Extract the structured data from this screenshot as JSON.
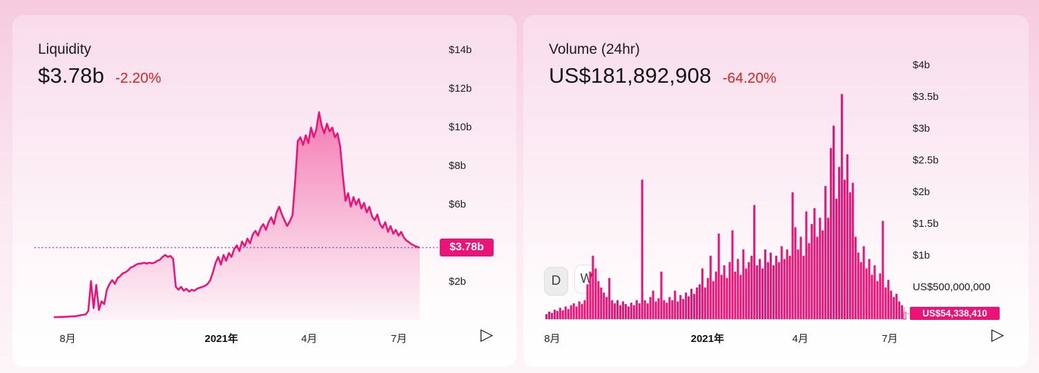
{
  "colors": {
    "accent_pink": "#ec1277",
    "badge_pink": "#ec1277",
    "negative_red": "#e0231c",
    "dotted_line_purple": "#7b2d8e",
    "connector_pink": "#f2a9ce"
  },
  "icons": {
    "play": "▷"
  },
  "liquidity_card": {
    "title": "Liquidity",
    "value": "$3.78b",
    "change": "-2.20%"
  },
  "volume_card": {
    "title": "Volume (24hr)",
    "value": "US$181,892,908",
    "change": "-64.20%",
    "range_buttons": [
      {
        "label": "D",
        "active": true
      },
      {
        "label": "W",
        "active": false
      }
    ]
  },
  "chart_data": [
    {
      "type": "area",
      "title": "Liquidity",
      "unit": "USD billions",
      "ylim": [
        0,
        14.8
      ],
      "grid": false,
      "yticks": [
        {
          "label": "$14b",
          "value": 14
        },
        {
          "label": "$12b",
          "value": 12
        },
        {
          "label": "$10b",
          "value": 10
        },
        {
          "label": "$8b",
          "value": 8
        },
        {
          "label": "$6b",
          "value": 6
        },
        {
          "label": "$2b",
          "value": 2
        }
      ],
      "xticks": [
        {
          "label": "8月",
          "pos": 0.038,
          "bold": false
        },
        {
          "label": "2021年",
          "pos": 0.458,
          "bold": true
        },
        {
          "label": "4月",
          "pos": 0.698,
          "bold": false
        },
        {
          "label": "7月",
          "pos": 0.943,
          "bold": false
        }
      ],
      "current": {
        "label": "$3.78b",
        "value": 3.78
      },
      "values": [
        0.18,
        0.18,
        0.19,
        0.19,
        0.2,
        0.2,
        0.21,
        0.22,
        0.22,
        0.25,
        0.28,
        0.3,
        0.32,
        0.5,
        2.05,
        0.65,
        1.85,
        0.55,
        1.0,
        0.85,
        1.6,
        1.9,
        2.1,
        1.9,
        2.2,
        2.3,
        2.45,
        2.5,
        2.6,
        2.75,
        2.8,
        2.9,
        2.95,
        2.95,
        3.0,
        2.95,
        3.0,
        2.97,
        3.0,
        3.1,
        3.15,
        3.3,
        3.4,
        3.3,
        3.35,
        3.2,
        1.75,
        1.6,
        1.75,
        1.55,
        1.65,
        1.5,
        1.6,
        1.55,
        1.65,
        1.7,
        1.75,
        1.8,
        1.9,
        2.1,
        2.5,
        3.0,
        3.3,
        2.9,
        3.4,
        3.1,
        3.5,
        3.3,
        3.7,
        3.9,
        3.6,
        4.1,
        3.85,
        4.25,
        4.0,
        4.45,
        4.65,
        4.4,
        4.8,
        5.0,
        4.7,
        5.1,
        5.35,
        5.0,
        5.6,
        5.9,
        5.5,
        5.2,
        4.9,
        5.15,
        5.45,
        7.2,
        9.3,
        9.5,
        9.1,
        9.6,
        9.2,
        10.0,
        9.5,
        9.9,
        10.8,
        10.1,
        9.7,
        10.2,
        9.8,
        10.0,
        9.5,
        9.7,
        9.0,
        7.5,
        6.2,
        6.6,
        5.9,
        6.4,
        6.0,
        6.3,
        5.8,
        6.1,
        5.6,
        5.9,
        5.4,
        5.2,
        5.5,
        5.0,
        4.8,
        5.1,
        4.6,
        4.9,
        4.5,
        4.7,
        4.4,
        4.6,
        4.3,
        4.15,
        4.05,
        3.95,
        3.88,
        3.82,
        3.78
      ]
    },
    {
      "type": "bar",
      "title": "Volume (24hr)",
      "unit": "USD billions",
      "ylim": [
        0,
        4.3
      ],
      "grid": false,
      "yticks": [
        {
          "label": "$4b",
          "value": 4
        },
        {
          "label": "$3.5b",
          "value": 3.5
        },
        {
          "label": "$3b",
          "value": 3
        },
        {
          "label": "$2.5b",
          "value": 2.5
        },
        {
          "label": "$2b",
          "value": 2
        },
        {
          "label": "$1.5b",
          "value": 1.5
        },
        {
          "label": "$1b",
          "value": 1
        },
        {
          "label": "US$500,000,000",
          "value": 0.5
        }
      ],
      "xticks": [
        {
          "label": "8月",
          "pos": 0.019,
          "bold": false
        },
        {
          "label": "2021年",
          "pos": 0.449,
          "bold": true
        },
        {
          "label": "4月",
          "pos": 0.706,
          "bold": false
        },
        {
          "label": "7月",
          "pos": 0.954,
          "bold": false
        }
      ],
      "current": {
        "label": "US$54,338,410",
        "value": 0.054
      },
      "last_bar_outlined": true,
      "values": [
        0.08,
        0.12,
        0.1,
        0.15,
        0.13,
        0.18,
        0.14,
        0.2,
        0.16,
        0.22,
        0.25,
        0.2,
        0.28,
        0.24,
        0.3,
        0.55,
        0.75,
        1.0,
        0.8,
        0.6,
        0.5,
        0.42,
        0.35,
        0.65,
        0.3,
        0.25,
        0.3,
        0.22,
        0.28,
        0.24,
        0.2,
        0.26,
        0.22,
        0.3,
        0.25,
        2.2,
        0.3,
        0.25,
        0.35,
        0.45,
        0.28,
        0.33,
        0.75,
        0.3,
        0.26,
        0.35,
        0.3,
        0.45,
        0.28,
        0.38,
        0.32,
        0.42,
        0.36,
        0.48,
        0.4,
        0.5,
        0.55,
        0.8,
        0.5,
        0.65,
        1.0,
        0.6,
        0.75,
        1.35,
        0.7,
        0.85,
        0.65,
        0.9,
        1.4,
        0.75,
        0.95,
        0.7,
        1.1,
        0.8,
        0.9,
        1.0,
        1.8,
        0.85,
        0.95,
        0.8,
        1.1,
        0.9,
        1.05,
        0.85,
        1.0,
        0.9,
        1.15,
        0.95,
        1.1,
        1.0,
        2.0,
        1.45,
        1.1,
        1.3,
        1.0,
        1.7,
        1.2,
        1.5,
        1.75,
        1.3,
        1.6,
        1.4,
        2.1,
        1.6,
        2.7,
        3.05,
        1.9,
        2.4,
        3.55,
        2.2,
        2.6,
        2.0,
        2.15,
        1.3,
        1.05,
        0.9,
        1.15,
        0.8,
        0.95,
        0.7,
        0.85,
        0.6,
        0.72,
        1.55,
        0.5,
        0.62,
        0.45,
        0.35,
        0.4,
        0.28,
        0.22,
        0.054
      ]
    }
  ]
}
